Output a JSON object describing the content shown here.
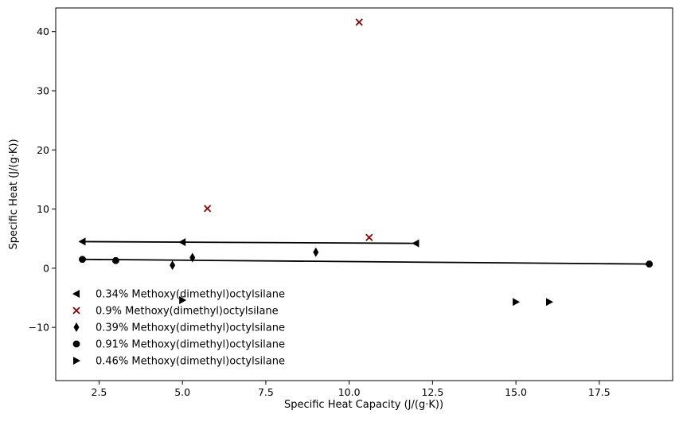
{
  "chart_data": {
    "type": "scatter",
    "xlabel": "Specific Heat Capacity (J/(g·K))",
    "ylabel": "Specific Heat (J/(g·K))",
    "xlim": [
      1.2,
      19.7
    ],
    "ylim": [
      -19.0,
      44.0
    ],
    "x_ticks": [
      2.5,
      5.0,
      7.5,
      10.0,
      12.5,
      15.0,
      17.5
    ],
    "x_tick_labels": [
      "2.5",
      "5.0",
      "7.5",
      "10.0",
      "12.5",
      "15.0",
      "17.5"
    ],
    "y_ticks": [
      -10,
      0,
      10,
      20,
      30,
      40
    ],
    "y_tick_labels": [
      "−10",
      "0",
      "10",
      "20",
      "30",
      "40"
    ],
    "grid": false,
    "legend_position": "lower-left",
    "series": [
      {
        "name": "0.34% Methoxy(dimethyl)octylsilane",
        "marker": "triangle-left",
        "color": "#000000",
        "points": [
          [
            2.0,
            4.5
          ],
          [
            5.0,
            4.4
          ],
          [
            12.0,
            4.2
          ]
        ],
        "line": [
          [
            2.0,
            4.5
          ],
          [
            12.0,
            4.2
          ]
        ]
      },
      {
        "name": "0.9% Methoxy(dimethyl)octylsilane",
        "marker": "x",
        "color": "#8b0000",
        "points": [
          [
            10.3,
            41.6
          ],
          [
            5.75,
            10.1
          ],
          [
            10.6,
            5.2
          ]
        ]
      },
      {
        "name": "0.39% Methoxy(dimethyl)octylsilane",
        "marker": "thin-diamond",
        "color": "#000000",
        "points": [
          [
            4.7,
            0.5
          ],
          [
            5.3,
            1.8
          ],
          [
            9.0,
            2.7
          ]
        ]
      },
      {
        "name": "0.91% Methoxy(dimethyl)octylsilane",
        "marker": "octagon",
        "color": "#000000",
        "points": [
          [
            2.0,
            1.5
          ],
          [
            3.0,
            1.3
          ],
          [
            19.0,
            0.7
          ]
        ],
        "line": [
          [
            2.0,
            1.5
          ],
          [
            19.0,
            0.7
          ]
        ]
      },
      {
        "name": "0.46% Methoxy(dimethyl)octylsilane",
        "marker": "triangle-right",
        "color": "#000000",
        "points": [
          [
            5.0,
            -5.4
          ],
          [
            15.0,
            -5.7
          ],
          [
            16.0,
            -5.7
          ]
        ]
      }
    ]
  }
}
